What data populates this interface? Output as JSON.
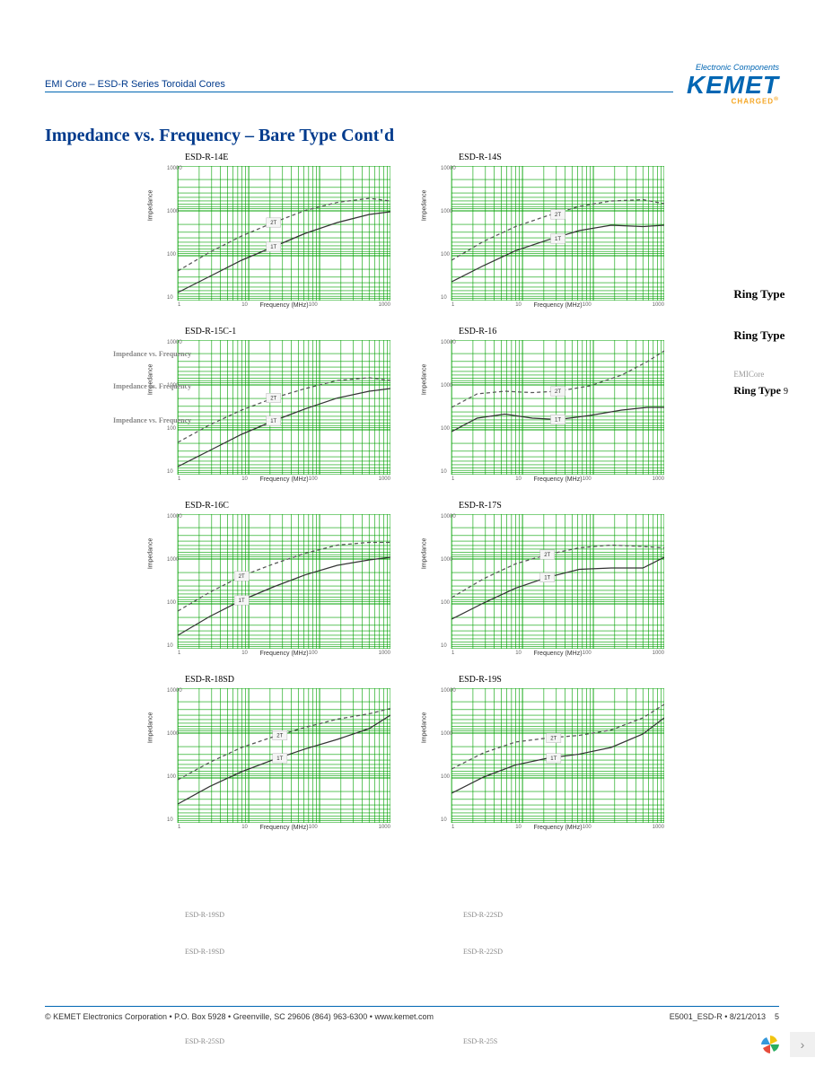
{
  "header": {
    "doc_title": "EMI Core – ESD-R Series Toroidal Cores",
    "brand_tagline": "Electronic Components",
    "brand_name": "KEMET",
    "brand_sub": "CHARGED"
  },
  "section_title": "Impedance vs. Frequency – Bare Type Cont'd",
  "axis": {
    "xlabel": "Frequency (MHz)",
    "ylabel": "Impedance",
    "xticks": [
      "1",
      "10",
      "100",
      "1000"
    ],
    "yticks": [
      "10000",
      "1000",
      "100",
      "10"
    ]
  },
  "charts": [
    [
      {
        "title": "ESD-R-14E",
        "curves": [
          {
            "color": "#555555",
            "dash": "4 3",
            "pts": [
              [
                0,
                0.22
              ],
              [
                0.15,
                0.36
              ],
              [
                0.3,
                0.48
              ],
              [
                0.45,
                0.58
              ],
              [
                0.6,
                0.67
              ],
              [
                0.75,
                0.73
              ],
              [
                0.9,
                0.76
              ],
              [
                1.0,
                0.74
              ]
            ]
          },
          {
            "color": "#333333",
            "dash": "",
            "pts": [
              [
                0,
                0.06
              ],
              [
                0.15,
                0.18
              ],
              [
                0.3,
                0.3
              ],
              [
                0.45,
                0.4
              ],
              [
                0.6,
                0.5
              ],
              [
                0.75,
                0.58
              ],
              [
                0.9,
                0.64
              ],
              [
                1.0,
                0.66
              ]
            ]
          }
        ],
        "markers": [
          [
            0.45,
            0.58,
            "2T"
          ],
          [
            0.45,
            0.4,
            "1T"
          ]
        ]
      },
      {
        "title": "ESD-R-14S",
        "curves": [
          {
            "color": "#555555",
            "dash": "4 3",
            "pts": [
              [
                0,
                0.3
              ],
              [
                0.15,
                0.44
              ],
              [
                0.3,
                0.55
              ],
              [
                0.45,
                0.63
              ],
              [
                0.6,
                0.7
              ],
              [
                0.75,
                0.74
              ],
              [
                0.9,
                0.75
              ],
              [
                1.0,
                0.72
              ]
            ]
          },
          {
            "color": "#333333",
            "dash": "",
            "pts": [
              [
                0,
                0.14
              ],
              [
                0.15,
                0.26
              ],
              [
                0.3,
                0.37
              ],
              [
                0.45,
                0.45
              ],
              [
                0.6,
                0.52
              ],
              [
                0.75,
                0.56
              ],
              [
                0.9,
                0.55
              ],
              [
                1.0,
                0.56
              ]
            ]
          }
        ],
        "markers": [
          [
            0.5,
            0.64,
            "2T"
          ],
          [
            0.5,
            0.46,
            "1T"
          ]
        ]
      }
    ],
    [
      {
        "title": "ESD-R-15C-1",
        "curves": [
          {
            "color": "#555555",
            "dash": "4 3",
            "pts": [
              [
                0,
                0.24
              ],
              [
                0.15,
                0.37
              ],
              [
                0.3,
                0.48
              ],
              [
                0.45,
                0.57
              ],
              [
                0.6,
                0.64
              ],
              [
                0.75,
                0.7
              ],
              [
                0.9,
                0.72
              ],
              [
                1.0,
                0.7
              ]
            ]
          },
          {
            "color": "#333333",
            "dash": "",
            "pts": [
              [
                0,
                0.06
              ],
              [
                0.15,
                0.18
              ],
              [
                0.3,
                0.3
              ],
              [
                0.45,
                0.4
              ],
              [
                0.6,
                0.49
              ],
              [
                0.75,
                0.57
              ],
              [
                0.9,
                0.62
              ],
              [
                1.0,
                0.64
              ]
            ]
          }
        ],
        "markers": [
          [
            0.45,
            0.57,
            "2T"
          ],
          [
            0.45,
            0.4,
            "1T"
          ]
        ]
      },
      {
        "title": "ESD-R-16",
        "curves": [
          {
            "color": "#555555",
            "dash": "4 3",
            "pts": [
              [
                0,
                0.5
              ],
              [
                0.12,
                0.6
              ],
              [
                0.25,
                0.62
              ],
              [
                0.38,
                0.61
              ],
              [
                0.5,
                0.62
              ],
              [
                0.65,
                0.66
              ],
              [
                0.8,
                0.74
              ],
              [
                0.92,
                0.84
              ],
              [
                1.0,
                0.92
              ]
            ]
          },
          {
            "color": "#333333",
            "dash": "",
            "pts": [
              [
                0,
                0.32
              ],
              [
                0.12,
                0.42
              ],
              [
                0.25,
                0.45
              ],
              [
                0.38,
                0.42
              ],
              [
                0.5,
                0.41
              ],
              [
                0.65,
                0.44
              ],
              [
                0.8,
                0.48
              ],
              [
                0.92,
                0.5
              ],
              [
                1.0,
                0.5
              ]
            ]
          }
        ],
        "markers": [
          [
            0.5,
            0.62,
            "2T"
          ],
          [
            0.5,
            0.41,
            "1T"
          ]
        ]
      }
    ],
    [
      {
        "title": "ESD-R-16C",
        "curves": [
          {
            "color": "#555555",
            "dash": "4 3",
            "pts": [
              [
                0,
                0.28
              ],
              [
                0.15,
                0.42
              ],
              [
                0.3,
                0.54
              ],
              [
                0.45,
                0.63
              ],
              [
                0.6,
                0.71
              ],
              [
                0.75,
                0.77
              ],
              [
                0.9,
                0.79
              ],
              [
                1.0,
                0.79
              ]
            ]
          },
          {
            "color": "#333333",
            "dash": "",
            "pts": [
              [
                0,
                0.1
              ],
              [
                0.15,
                0.24
              ],
              [
                0.3,
                0.36
              ],
              [
                0.45,
                0.46
              ],
              [
                0.6,
                0.55
              ],
              [
                0.75,
                0.62
              ],
              [
                0.9,
                0.66
              ],
              [
                1.0,
                0.68
              ]
            ]
          }
        ],
        "markers": [
          [
            0.3,
            0.54,
            "2T"
          ],
          [
            0.3,
            0.36,
            "1T"
          ]
        ]
      },
      {
        "title": "ESD-R-17S",
        "curves": [
          {
            "color": "#555555",
            "dash": "4 3",
            "pts": [
              [
                0,
                0.38
              ],
              [
                0.15,
                0.52
              ],
              [
                0.3,
                0.63
              ],
              [
                0.45,
                0.7
              ],
              [
                0.6,
                0.75
              ],
              [
                0.75,
                0.77
              ],
              [
                0.9,
                0.76
              ],
              [
                1.0,
                0.75
              ]
            ]
          },
          {
            "color": "#333333",
            "dash": "",
            "pts": [
              [
                0,
                0.22
              ],
              [
                0.15,
                0.34
              ],
              [
                0.3,
                0.45
              ],
              [
                0.45,
                0.53
              ],
              [
                0.6,
                0.59
              ],
              [
                0.75,
                0.6
              ],
              [
                0.9,
                0.6
              ],
              [
                1.0,
                0.68
              ]
            ]
          }
        ],
        "markers": [
          [
            0.45,
            0.7,
            "2T"
          ],
          [
            0.45,
            0.53,
            "1T"
          ]
        ]
      }
    ],
    [
      {
        "title": "ESD-R-18SD",
        "curves": [
          {
            "color": "#555555",
            "dash": "4 3",
            "pts": [
              [
                0,
                0.32
              ],
              [
                0.15,
                0.45
              ],
              [
                0.3,
                0.56
              ],
              [
                0.45,
                0.64
              ],
              [
                0.6,
                0.71
              ],
              [
                0.75,
                0.77
              ],
              [
                0.9,
                0.81
              ],
              [
                1.0,
                0.85
              ]
            ]
          },
          {
            "color": "#333333",
            "dash": "",
            "pts": [
              [
                0,
                0.14
              ],
              [
                0.15,
                0.27
              ],
              [
                0.3,
                0.38
              ],
              [
                0.45,
                0.47
              ],
              [
                0.6,
                0.55
              ],
              [
                0.75,
                0.62
              ],
              [
                0.9,
                0.7
              ],
              [
                1.0,
                0.8
              ]
            ]
          }
        ],
        "markers": [
          [
            0.48,
            0.65,
            "2T"
          ],
          [
            0.48,
            0.48,
            "1T"
          ]
        ]
      },
      {
        "title": "ESD-R-19S",
        "curves": [
          {
            "color": "#555555",
            "dash": "4 3",
            "pts": [
              [
                0,
                0.4
              ],
              [
                0.15,
                0.52
              ],
              [
                0.3,
                0.6
              ],
              [
                0.45,
                0.63
              ],
              [
                0.6,
                0.65
              ],
              [
                0.75,
                0.69
              ],
              [
                0.9,
                0.78
              ],
              [
                1.0,
                0.88
              ]
            ]
          },
          {
            "color": "#333333",
            "dash": "",
            "pts": [
              [
                0,
                0.22
              ],
              [
                0.15,
                0.34
              ],
              [
                0.3,
                0.43
              ],
              [
                0.45,
                0.48
              ],
              [
                0.6,
                0.51
              ],
              [
                0.75,
                0.56
              ],
              [
                0.9,
                0.66
              ],
              [
                1.0,
                0.78
              ]
            ]
          }
        ],
        "markers": [
          [
            0.48,
            0.63,
            "2T"
          ],
          [
            0.48,
            0.48,
            "1T"
          ]
        ]
      }
    ]
  ],
  "side": {
    "label1": "Ring Type",
    "label2": "Ring Type",
    "label_small": "EMICore",
    "label3": "Ring Type",
    "pagenum": "9"
  },
  "ghost_labels": {
    "imp_vs_freq": "Impedance vs. Frequency",
    "esd_r_19sd": "ESD-R-19SD",
    "esd_r_22sd": "ESD-R-22SD",
    "esd_r_25sd": "ESD-R-25SD",
    "esd_r_25s": "ESD-R-25S"
  },
  "chart_style": {
    "grid_color": "#00a000",
    "grid_width": 0.6,
    "background": "#ffffff",
    "curve_width": 1.2,
    "marker_bg": "#f5f5f5",
    "marker_font_size": 6
  },
  "footer": {
    "left": "© KEMET Electronics Corporation • P.O. Box 5928 • Greenville, SC 29606 (864) 963-6300 • www.kemet.com",
    "right": "E5001_ESD-R • 8/21/2013",
    "page": "5"
  }
}
